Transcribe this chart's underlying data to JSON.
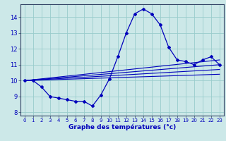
{
  "xlabel": "Graphe des températures (°c)",
  "xlim": [
    -0.5,
    23.5
  ],
  "ylim": [
    7.8,
    14.8
  ],
  "yticks": [
    8,
    9,
    10,
    11,
    12,
    13,
    14
  ],
  "xticks": [
    0,
    1,
    2,
    3,
    4,
    5,
    6,
    7,
    8,
    9,
    10,
    11,
    12,
    13,
    14,
    15,
    16,
    17,
    18,
    19,
    20,
    21,
    22,
    23
  ],
  "background_color": "#cce8e8",
  "grid_color": "#99cccc",
  "line_color": "#0000bb",
  "main_x": [
    0,
    1,
    2,
    3,
    4,
    5,
    6,
    7,
    8,
    9,
    10,
    11,
    12,
    13,
    14,
    15,
    16,
    17,
    18,
    19,
    20,
    21,
    22,
    23
  ],
  "main_y": [
    10.0,
    10.0,
    9.6,
    9.0,
    8.9,
    8.8,
    8.7,
    8.7,
    8.4,
    9.1,
    10.1,
    11.5,
    13.0,
    14.2,
    14.5,
    14.2,
    13.5,
    12.1,
    11.3,
    11.2,
    11.0,
    11.3,
    11.5,
    11.0
  ],
  "trend1_x": [
    0,
    23
  ],
  "trend1_y": [
    10.0,
    11.3
  ],
  "trend2_x": [
    0,
    23
  ],
  "trend2_y": [
    10.0,
    11.0
  ],
  "trend3_x": [
    0,
    23
  ],
  "trend3_y": [
    10.0,
    10.7
  ],
  "trend4_x": [
    0,
    23
  ],
  "trend4_y": [
    10.0,
    10.4
  ]
}
